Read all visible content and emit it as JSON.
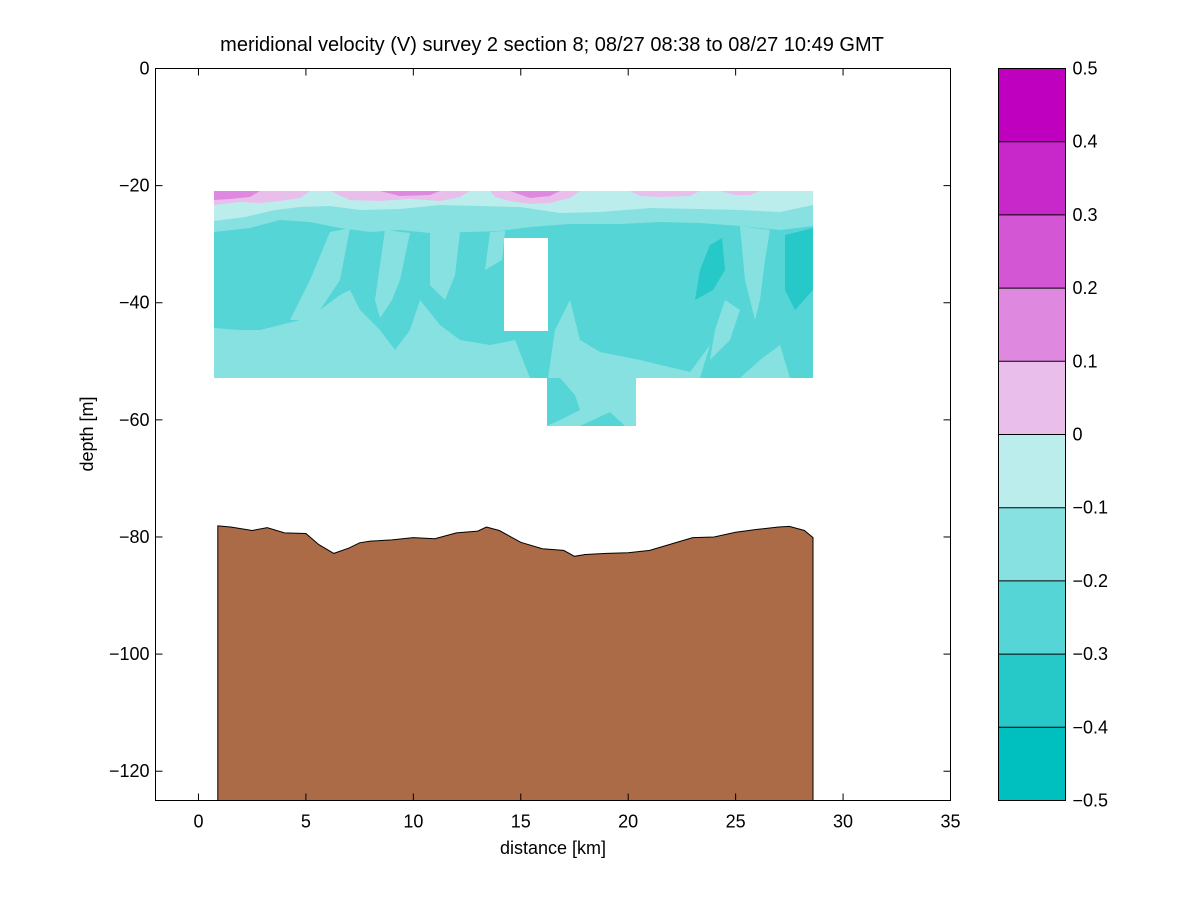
{
  "chart_data": {
    "type": "heatmap",
    "title": "meridional velocity (V) survey 2 section 8; 08/27 08:38 to 08/27 10:49 GMT",
    "xlabel": "distance [km]",
    "ylabel": "depth [m]",
    "xlim": [
      -2,
      35
    ],
    "ylim": [
      -125,
      0
    ],
    "xticks": [
      "0",
      "5",
      "10",
      "15",
      "20",
      "25",
      "30",
      "35"
    ],
    "xtick_values": [
      0,
      5,
      10,
      15,
      20,
      25,
      30,
      35
    ],
    "yticks": [
      "0",
      "−20",
      "−40",
      "−60",
      "−80",
      "−100",
      "−120"
    ],
    "ytick_values": [
      0,
      -20,
      -40,
      -60,
      -80,
      -100,
      -120
    ],
    "grid": false,
    "colorbar": {
      "levels": [
        -0.5,
        -0.4,
        -0.3,
        -0.2,
        -0.1,
        0,
        0.1,
        0.2,
        0.3,
        0.4,
        0.5
      ],
      "labels": [
        "−0.5",
        "−0.4",
        "−0.3",
        "−0.2",
        "−0.1",
        "0",
        "0.1",
        "0.2",
        "0.3",
        "0.4",
        "0.5"
      ],
      "colors": [
        "#00bfbf",
        "#26c8c8",
        "#55d5d5",
        "#88e1e1",
        "#bceded",
        "#eabeeb",
        "#df88e0",
        "#d356d4",
        "#c827c9",
        "#bf00bf"
      ]
    },
    "data_coverage": {
      "x_range_km": [
        0.9,
        28.6
      ],
      "depth_range_m": [
        -21,
        -53
      ],
      "deep_extension": {
        "x_range_km": [
          16.3,
          20.4
        ],
        "depth_range_m": [
          -53,
          -61
        ]
      },
      "gap": {
        "x_range_km": [
          14.4,
          16.4
        ],
        "depth_range_m": [
          -29,
          -45
        ]
      }
    },
    "bathymetry": {
      "color": "#ab6b46",
      "x": [
        0.9,
        1.5,
        2.5,
        3.2,
        4,
        5,
        5.6,
        6.3,
        7,
        7.5,
        8,
        9,
        10,
        11,
        12,
        13,
        13.4,
        14,
        15,
        16,
        17,
        17.5,
        18,
        19,
        20,
        21,
        22,
        23,
        24,
        25,
        26,
        27,
        27.5,
        28.2,
        28.6
      ],
      "depth": [
        -78.1,
        -78.3,
        -78.9,
        -78.4,
        -79.3,
        -79.4,
        -81.3,
        -82.8,
        -81.9,
        -81.0,
        -80.7,
        -80.5,
        -80.1,
        -80.3,
        -79.3,
        -79.0,
        -78.3,
        -78.9,
        -80.9,
        -82.0,
        -82.3,
        -83.3,
        -83.0,
        -82.8,
        -82.7,
        -82.3,
        -81.2,
        -80.1,
        -80.0,
        -79.2,
        -78.7,
        -78.3,
        -78.2,
        -78.9,
        -80.1
      ]
    }
  }
}
